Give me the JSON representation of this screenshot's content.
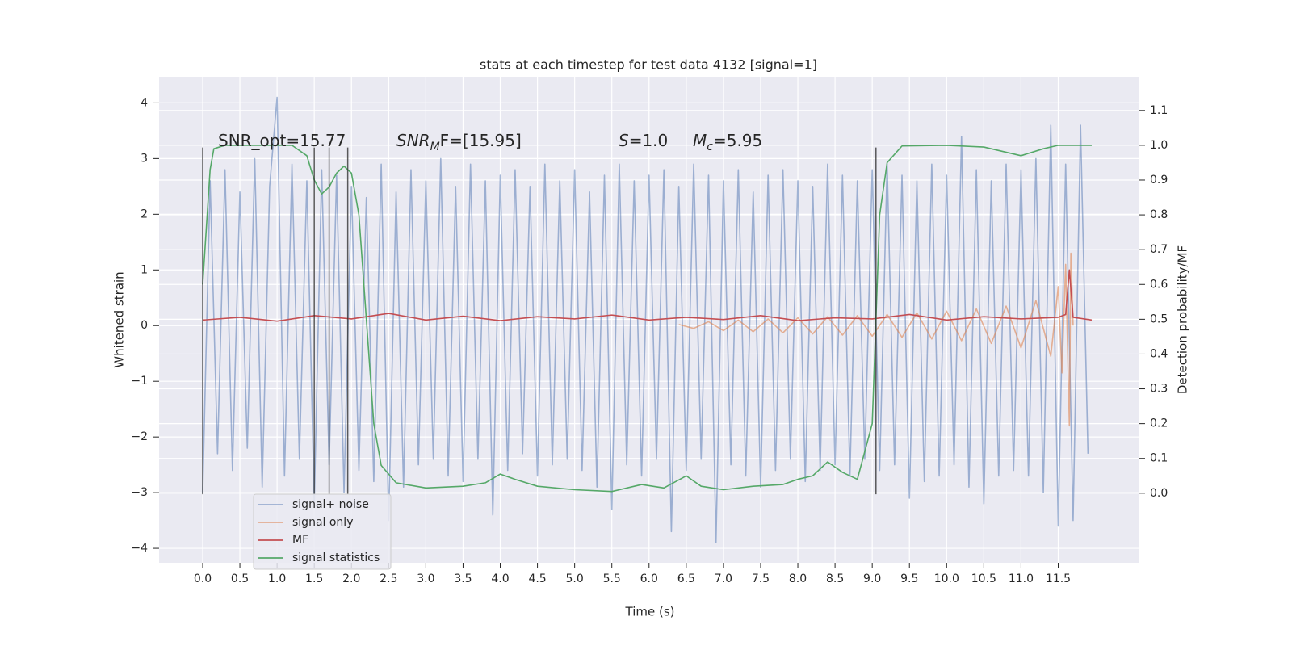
{
  "chart_data": {
    "type": "line",
    "title": "stats at each timestep for test data 4132 [signal=1]",
    "x_label": "Time (s)",
    "y_label": "Whitened strain",
    "y2_label": "Detection probability/MF",
    "xlim": [
      -0.586,
      12.58
    ],
    "ylim": [
      -4.26,
      4.47
    ],
    "y2lim": [
      -0.2,
      1.197
    ],
    "xticks": [
      {
        "value": 0,
        "label": "0.0"
      },
      0.5,
      {
        "value": 1,
        "label": "1.0"
      },
      1.5,
      {
        "value": 2,
        "label": "2.0"
      },
      2.5,
      {
        "value": 3,
        "label": "3.0"
      },
      3.5,
      {
        "value": 4,
        "label": "4.0"
      },
      4.5,
      {
        "value": 5,
        "label": "5.0"
      },
      5.5,
      {
        "value": 6,
        "label": "6.0"
      },
      6.5,
      {
        "value": 7,
        "label": "7.0"
      },
      7.5,
      {
        "value": 8,
        "label": "8.0"
      },
      8.5,
      {
        "value": 9,
        "label": "9.0"
      },
      9.5,
      {
        "value": 10,
        "label": "10.0"
      },
      10.5,
      {
        "value": 11,
        "label": "11.0"
      },
      11.5
    ],
    "yticks": [
      {
        "value": -4,
        "label": "−4"
      },
      {
        "value": -3,
        "label": "−3"
      },
      {
        "value": -2,
        "label": "−2"
      },
      {
        "value": -1,
        "label": "−1"
      },
      0,
      1,
      2,
      3,
      4
    ],
    "y2ticks": [
      {
        "value": 0,
        "label": "0.0"
      },
      0.1,
      0.2,
      0.3,
      0.4,
      0.5,
      0.6,
      0.7,
      0.8,
      0.9,
      {
        "value": 1,
        "label": "1.0"
      },
      1.1
    ],
    "grid": true,
    "background": "#eaeaf2",
    "legend": "lower left",
    "series": [
      {
        "name": "signal+ noise",
        "color": "#4c72b0",
        "opacity": 0.5,
        "x": [
          0,
          0.1,
          0.2,
          0.3,
          0.4,
          0.5,
          0.6,
          0.7,
          0.8,
          0.9,
          1,
          1.1,
          1.2,
          1.3,
          1.4,
          1.5,
          1.6,
          1.7,
          1.8,
          1.9,
          2,
          2.1,
          2.2,
          2.3,
          2.4,
          2.5,
          2.6,
          2.7,
          2.8,
          2.9,
          3,
          3.1,
          3.2,
          3.3,
          3.4,
          3.5,
          3.6,
          3.7,
          3.8,
          3.9,
          4,
          4.1,
          4.2,
          4.3,
          4.4,
          4.5,
          4.6,
          4.7,
          4.8,
          4.9,
          5,
          5.1,
          5.2,
          5.3,
          5.4,
          5.5,
          5.6,
          5.7,
          5.8,
          5.9,
          6,
          6.1,
          6.2,
          6.3,
          6.4,
          6.5,
          6.6,
          6.7,
          6.8,
          6.9,
          7,
          7.1,
          7.2,
          7.3,
          7.4,
          7.5,
          7.6,
          7.7,
          7.8,
          7.9,
          8,
          8.1,
          8.2,
          8.3,
          8.4,
          8.5,
          8.6,
          8.7,
          8.8,
          8.9,
          9,
          9.1,
          9.2,
          9.3,
          9.4,
          9.5,
          9.6,
          9.7,
          9.8,
          9.9,
          10,
          10.1,
          10.2,
          10.3,
          10.4,
          10.5,
          10.6,
          10.7,
          10.8,
          10.9,
          11,
          11.1,
          11.2,
          11.3,
          11.4,
          11.5,
          11.6,
          11.7,
          11.8,
          11.9
        ],
        "values": [
          -3.0,
          2.6,
          -2.3,
          2.8,
          -2.6,
          2.4,
          -2.2,
          3.0,
          -2.9,
          2.5,
          4.1,
          -2.7,
          2.9,
          -2.4,
          2.6,
          -3.2,
          2.8,
          -2.5,
          2.7,
          -3.0,
          2.5,
          -2.6,
          2.3,
          -2.8,
          2.9,
          -3.5,
          2.4,
          -2.9,
          2.8,
          -2.5,
          2.6,
          -2.4,
          3.0,
          -2.7,
          2.5,
          -2.8,
          2.9,
          -2.4,
          2.6,
          -3.4,
          2.7,
          -2.6,
          2.8,
          -2.3,
          2.5,
          -2.7,
          2.9,
          -2.5,
          2.6,
          -2.4,
          2.8,
          -2.6,
          2.4,
          -2.9,
          2.7,
          -3.3,
          2.9,
          -2.5,
          2.6,
          -2.7,
          2.7,
          -2.4,
          2.8,
          -3.7,
          2.5,
          -2.6,
          2.9,
          -2.4,
          2.7,
          -3.9,
          2.6,
          -2.5,
          2.8,
          -2.7,
          2.4,
          -2.9,
          2.7,
          -2.6,
          2.8,
          -2.4,
          2.6,
          -2.8,
          2.5,
          -2.6,
          2.9,
          -2.5,
          2.7,
          -2.7,
          2.6,
          -2.4,
          2.8,
          -2.6,
          2.9,
          -2.5,
          2.7,
          -3.1,
          2.6,
          -2.8,
          2.9,
          -2.7,
          2.7,
          -2.5,
          3.4,
          -2.9,
          2.8,
          -3.2,
          2.6,
          -2.7,
          2.9,
          -2.6,
          2.8,
          -2.7,
          3.0,
          -3.0,
          3.6,
          -3.6,
          2.9,
          -3.5,
          3.6,
          -2.3
        ]
      },
      {
        "name": "signal only",
        "color": "#dd8452",
        "opacity": 0.6,
        "x": [
          6.4,
          6.6,
          6.8,
          7.0,
          7.2,
          7.4,
          7.6,
          7.8,
          8.0,
          8.2,
          8.4,
          8.6,
          8.8,
          9.0,
          9.2,
          9.4,
          9.6,
          9.8,
          10.0,
          10.2,
          10.4,
          10.6,
          10.8,
          11.0,
          11.2,
          11.4,
          11.5,
          11.55,
          11.6,
          11.65,
          11.67,
          11.7
        ],
        "values": [
          0.02,
          -0.05,
          0.07,
          -0.09,
          0.1,
          -0.11,
          0.12,
          -0.13,
          0.14,
          -0.15,
          0.16,
          -0.17,
          0.18,
          -0.19,
          0.2,
          -0.21,
          0.23,
          -0.24,
          0.26,
          -0.27,
          0.3,
          -0.32,
          0.35,
          -0.4,
          0.45,
          -0.55,
          0.7,
          -0.85,
          1.1,
          -1.8,
          1.3,
          0.0
        ]
      },
      {
        "name": "MF",
        "color": "#c44e52",
        "opacity": 1,
        "x": [
          0,
          0.5,
          1,
          1.5,
          2,
          2.5,
          3,
          3.5,
          4,
          4.5,
          5,
          5.5,
          6,
          6.5,
          7,
          7.5,
          8,
          8.5,
          9,
          9.5,
          10,
          10.5,
          11,
          11.5,
          11.6,
          11.65,
          11.7,
          11.95
        ],
        "values": [
          0.1,
          0.15,
          0.08,
          0.18,
          0.12,
          0.22,
          0.1,
          0.17,
          0.09,
          0.16,
          0.12,
          0.19,
          0.1,
          0.15,
          0.11,
          0.18,
          0.09,
          0.14,
          0.12,
          0.2,
          0.1,
          0.16,
          0.12,
          0.15,
          0.2,
          1.0,
          0.15,
          0.1
        ]
      },
      {
        "name": "signal statistics",
        "color": "#55a868",
        "opacity": 1,
        "axis": "y2",
        "x": [
          0,
          0.1,
          0.15,
          0.3,
          1.2,
          1.4,
          1.5,
          1.6,
          1.7,
          1.8,
          1.9,
          2.0,
          2.1,
          2.2,
          2.3,
          2.4,
          2.6,
          3.0,
          3.5,
          3.8,
          4.0,
          4.2,
          4.5,
          5.0,
          5.5,
          5.9,
          6.2,
          6.5,
          6.7,
          7.0,
          7.4,
          7.8,
          8.0,
          8.2,
          8.4,
          8.6,
          8.8,
          9.0,
          9.1,
          9.2,
          9.4,
          10.0,
          10.5,
          11.0,
          11.3,
          11.5,
          11.95
        ],
        "values": [
          0.6,
          0.93,
          0.99,
          1.0,
          1.0,
          0.97,
          0.9,
          0.86,
          0.88,
          0.92,
          0.94,
          0.92,
          0.8,
          0.5,
          0.2,
          0.08,
          0.03,
          0.015,
          0.02,
          0.03,
          0.055,
          0.04,
          0.02,
          0.01,
          0.005,
          0.025,
          0.015,
          0.05,
          0.02,
          0.01,
          0.02,
          0.025,
          0.04,
          0.05,
          0.09,
          0.06,
          0.04,
          0.2,
          0.8,
          0.95,
          0.998,
          1.0,
          0.995,
          0.97,
          0.99,
          1.0,
          1.0
        ]
      }
    ],
    "event_lines": {
      "x": [
        0,
        1.5,
        1.7,
        1.95,
        9.05
      ],
      "y_range": [
        -3.03,
        3.2
      ]
    },
    "annotations": [
      {
        "text": "SNR_opt=15.77"
      },
      {
        "base": "SNR",
        "sub": "M",
        "tail": "F=[15.95]"
      },
      {
        "base": "S",
        "tail": "=1.0"
      },
      {
        "base": "M",
        "sub": "c",
        "tail": "=5.95"
      }
    ]
  }
}
